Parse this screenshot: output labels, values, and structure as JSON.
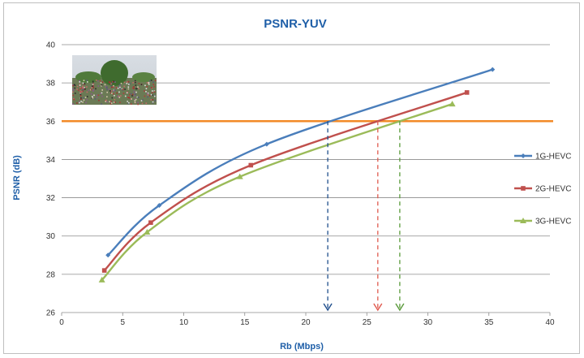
{
  "chart_data": {
    "type": "line",
    "title": "PSNR-YUV",
    "xlabel": "Rb (Mbps)",
    "ylabel": "PSNR (dB)",
    "xlim": [
      0,
      40
    ],
    "ylim": [
      26,
      40
    ],
    "xticks": [
      0,
      5,
      10,
      15,
      20,
      25,
      30,
      35,
      40
    ],
    "yticks": [
      26,
      28,
      30,
      32,
      34,
      36,
      38,
      40
    ],
    "grid": "horizontal",
    "legend_position": "right",
    "threshold": {
      "y": 36,
      "color": "#f28a28"
    },
    "text_color": "#1f5fa8",
    "series": [
      {
        "name": "1G-HEVC",
        "color": "#4a7ebb",
        "marker": "diamond",
        "points": [
          [
            3.8,
            29.0
          ],
          [
            8.0,
            31.6
          ],
          [
            16.8,
            34.8
          ],
          [
            35.3,
            38.7
          ]
        ]
      },
      {
        "name": "2G-HEVC",
        "color": "#c0504d",
        "marker": "square",
        "points": [
          [
            3.5,
            28.2
          ],
          [
            7.3,
            30.7
          ],
          [
            15.5,
            33.7
          ],
          [
            33.2,
            37.5
          ]
        ]
      },
      {
        "name": "3G-HEVC",
        "color": "#9bbb59",
        "marker": "triangle",
        "points": [
          [
            3.3,
            27.7
          ],
          [
            7.0,
            30.2
          ],
          [
            14.6,
            33.1
          ],
          [
            32.0,
            36.9
          ]
        ]
      }
    ],
    "drop_lines": [
      {
        "x": 21.8,
        "color": "#1f4e8c"
      },
      {
        "x": 25.9,
        "color": "#e05a4f"
      },
      {
        "x": 27.7,
        "color": "#5a9a3a"
      }
    ],
    "thumbnail": {
      "description_icon": "crowd-photo-thumbnail"
    }
  }
}
